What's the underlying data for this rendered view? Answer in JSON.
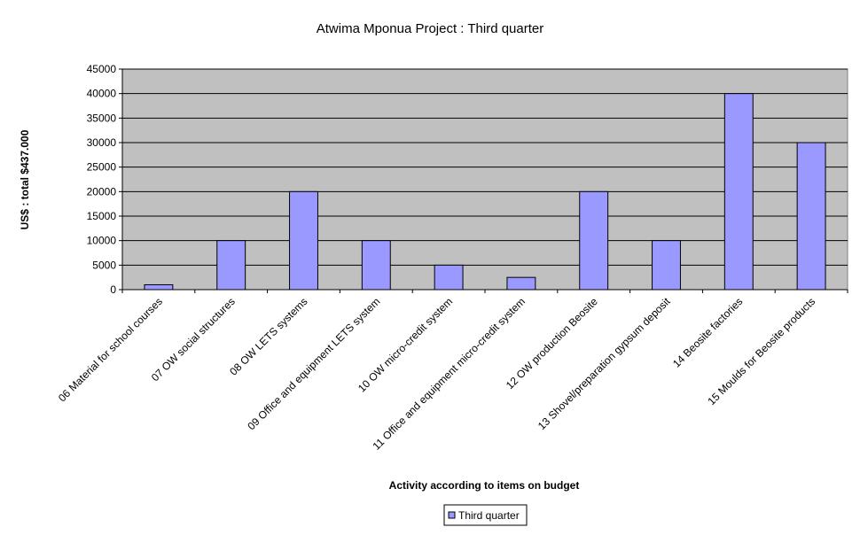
{
  "chart_data": {
    "type": "bar",
    "title": "Atwima Mponua Project : Third quarter",
    "xlabel": "Activity according to items on budget",
    "ylabel": "US$ : total $437.000",
    "ylim": [
      0,
      45000
    ],
    "yticks": [
      0,
      5000,
      10000,
      15000,
      20000,
      25000,
      30000,
      35000,
      40000,
      45000
    ],
    "categories": [
      "06 Material for school courses",
      "07 OW social structures",
      "08 OW LETS systems",
      "09 Office and equipment LETS system",
      "10 OW  micro-credit system",
      "11 Office and equipment micro-credit system",
      "12 OW   production Beosite",
      "13 Shovel/preparation gypsum deposit",
      "14 Beosite factories",
      "15 Moulds for Beosite products"
    ],
    "series": [
      {
        "name": "Third quarter",
        "values": [
          1000,
          10000,
          20000,
          10000,
          5000,
          2500,
          20000,
          10000,
          40000,
          30000
        ]
      }
    ],
    "grid": true,
    "legend": "bottom",
    "colors": {
      "plot_bg": "#c0c0c0",
      "bar_fill": "#9999ff",
      "bar_stroke": "#000000",
      "gridline": "#000000"
    }
  }
}
